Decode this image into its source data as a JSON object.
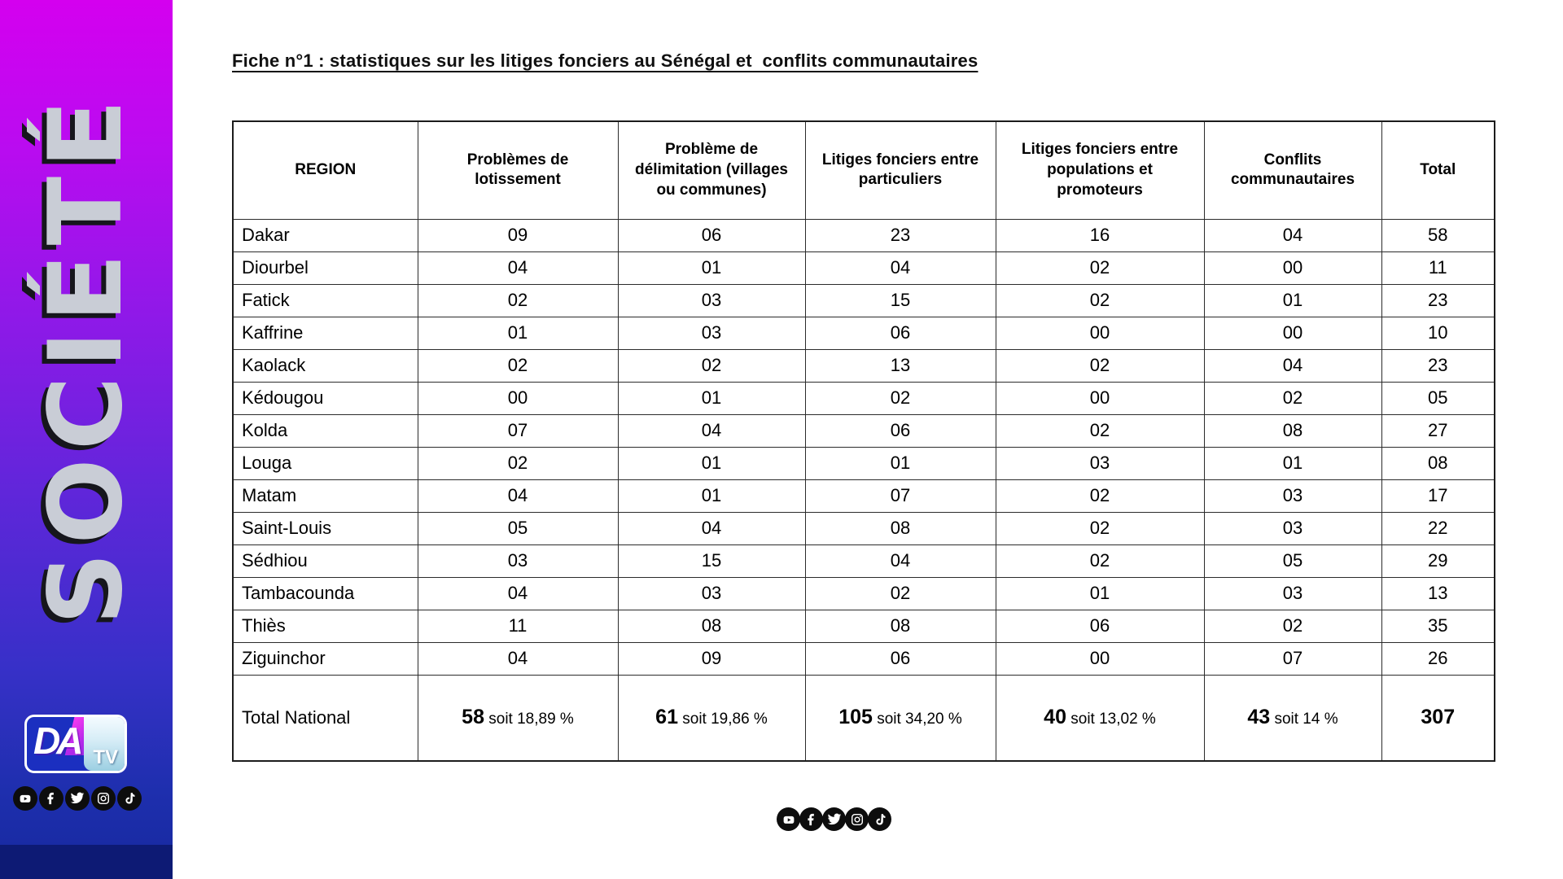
{
  "sidebar": {
    "category_label": "SOCIÉTÉ",
    "logo": {
      "da": "DA",
      "tv": "TV"
    },
    "social_icons": [
      "youtube",
      "facebook",
      "twitter",
      "instagram",
      "tiktok"
    ],
    "colors": {
      "gradient_top": "#d400ef",
      "gradient_middle": "#6026da",
      "gradient_bottom": "#16289e",
      "bottom_band": "#0d1a74",
      "letter_fill": "#c9cdd6"
    }
  },
  "main": {
    "title": "Fiche n°1 : statistiques sur les litiges fonciers au Sénégal et  conflits communautaires",
    "table": {
      "headers": [
        "REGION",
        "Problèmes de lotissement",
        "Problème de délimitation (villages ou communes)",
        "Litiges fonciers entre particuliers",
        "Litiges fonciers entre populations et promoteurs",
        "Conflits communautaires",
        "Total"
      ],
      "rows": [
        {
          "region": "Dakar",
          "values": [
            "09",
            "06",
            "23",
            "16",
            "04",
            "58"
          ]
        },
        {
          "region": "Diourbel",
          "values": [
            "04",
            "01",
            "04",
            "02",
            "00",
            "11"
          ]
        },
        {
          "region": "Fatick",
          "values": [
            "02",
            "03",
            "15",
            "02",
            "01",
            "23"
          ]
        },
        {
          "region": "Kaffrine",
          "values": [
            "01",
            "03",
            "06",
            "00",
            "00",
            "10"
          ]
        },
        {
          "region": "Kaolack",
          "values": [
            "02",
            "02",
            "13",
            "02",
            "04",
            "23"
          ]
        },
        {
          "region": "Kédougou",
          "values": [
            "00",
            "01",
            "02",
            "00",
            "02",
            "05"
          ]
        },
        {
          "region": "Kolda",
          "values": [
            "07",
            "04",
            "06",
            "02",
            "08",
            "27"
          ]
        },
        {
          "region": "Louga",
          "values": [
            "02",
            "01",
            "01",
            "03",
            "01",
            "08"
          ]
        },
        {
          "region": "Matam",
          "values": [
            "04",
            "01",
            "07",
            "02",
            "03",
            "17"
          ]
        },
        {
          "region": "Saint-Louis",
          "values": [
            "05",
            "04",
            "08",
            "02",
            "03",
            "22"
          ]
        },
        {
          "region": "Sédhiou",
          "values": [
            "03",
            "15",
            "04",
            "02",
            "05",
            "29"
          ]
        },
        {
          "region": "Tambacounda",
          "values": [
            "04",
            "03",
            "02",
            "01",
            "03",
            "13"
          ]
        },
        {
          "region": "Thiès",
          "values": [
            "11",
            "08",
            "08",
            "06",
            "02",
            "35"
          ]
        },
        {
          "region": "Ziguinchor",
          "values": [
            "04",
            "09",
            "06",
            "00",
            "07",
            "26"
          ]
        }
      ],
      "total_row": {
        "region": "Total National",
        "values": [
          {
            "number": "58",
            "note": "soit 18,89 %"
          },
          {
            "number": "61",
            "note": "soit 19,86 %"
          },
          {
            "number": "105",
            "note": "soit 34,20 %"
          },
          {
            "number": "40",
            "note": "soit 13,02 %"
          },
          {
            "number": "43",
            "note": "soit 14 %"
          },
          {
            "number": "307",
            "note": ""
          }
        ]
      }
    },
    "footer_social_icons": [
      "youtube",
      "facebook",
      "twitter",
      "instagram",
      "tiktok"
    ]
  }
}
